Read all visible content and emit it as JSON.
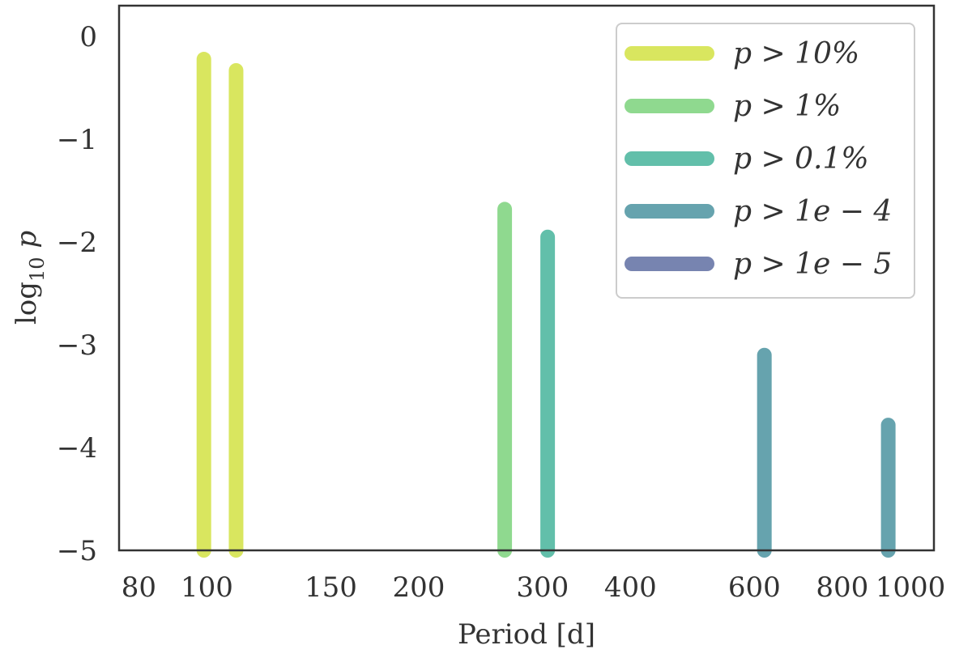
{
  "chart_data": {
    "type": "bar",
    "xlabel": "Period [d]",
    "ylabel": "log10 p",
    "xscale": "log",
    "xlim": [
      75,
      1080
    ],
    "ylim": [
      -5,
      0.3
    ],
    "grid": false,
    "legend_position": "top-right",
    "x_ticks": [
      {
        "value": 80,
        "label": "80"
      },
      {
        "value": 100,
        "label": "100"
      },
      {
        "value": 150,
        "label": "150"
      },
      {
        "value": 200,
        "label": "200"
      },
      {
        "value": 300,
        "label": "300"
      },
      {
        "value": 400,
        "label": "400"
      },
      {
        "value": 600,
        "label": "600"
      },
      {
        "value": 800,
        "label": "800"
      },
      {
        "value": 1000,
        "label": "1000"
      }
    ],
    "y_ticks": [
      {
        "value": 0,
        "label": "0"
      },
      {
        "value": -1,
        "label": "−1"
      },
      {
        "value": -2,
        "label": "−2"
      },
      {
        "value": -3,
        "label": "−3"
      },
      {
        "value": -4,
        "label": "−4"
      },
      {
        "value": -5,
        "label": "−5"
      }
    ],
    "series": [
      {
        "name": "p > 10%",
        "color": "#d9e65f"
      },
      {
        "name": "p > 1%",
        "color": "#8fd98f"
      },
      {
        "name": "p > 0.1%",
        "color": "#62bfaa"
      },
      {
        "name": "p > 1e − 4",
        "color": "#66a3ae"
      },
      {
        "name": "p > 1e − 5",
        "color": "#7784b0"
      }
    ],
    "bars": [
      {
        "x": 99,
        "y": -0.22,
        "series": 0
      },
      {
        "x": 110,
        "y": -0.33,
        "series": 0
      },
      {
        "x": 265,
        "y": -1.68,
        "series": 1
      },
      {
        "x": 305,
        "y": -1.95,
        "series": 2
      },
      {
        "x": 620,
        "y": -3.1,
        "series": 3
      },
      {
        "x": 930,
        "y": -3.78,
        "series": 3
      }
    ]
  }
}
